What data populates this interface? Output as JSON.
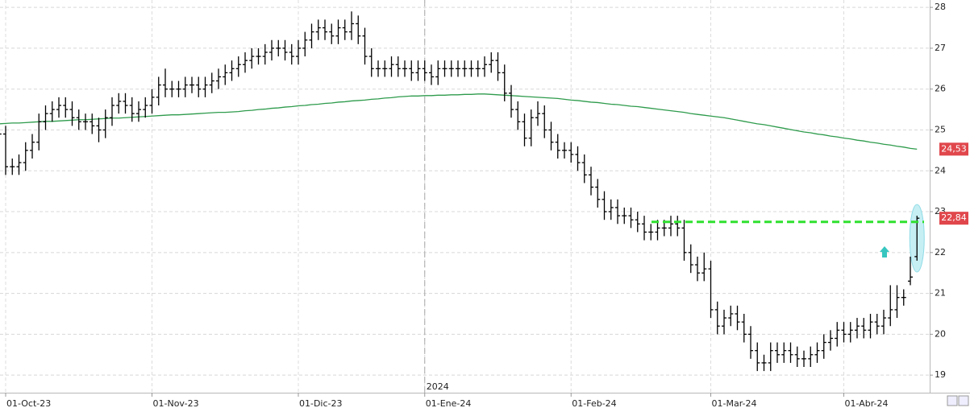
{
  "chart_data": {
    "type": "ohlc",
    "categories": [
      null,
      "01-Oct-23",
      null,
      null,
      null,
      null,
      null,
      null,
      null,
      null,
      null,
      null,
      null,
      null,
      null,
      null,
      null,
      null,
      null,
      null,
      null,
      null,
      null,
      "01-Nov-23",
      null,
      null,
      null,
      null,
      null,
      null,
      null,
      null,
      null,
      null,
      null,
      null,
      null,
      null,
      null,
      null,
      null,
      null,
      null,
      null,
      null,
      "01-Dic-23",
      null,
      null,
      null,
      null,
      null,
      null,
      null,
      null,
      null,
      null,
      null,
      null,
      null,
      null,
      null,
      null,
      null,
      null,
      "01-Ene-24",
      null,
      null,
      null,
      null,
      null,
      null,
      null,
      null,
      null,
      null,
      null,
      null,
      null,
      null,
      null,
      null,
      null,
      null,
      null,
      null,
      null,
      "01-Feb-24",
      null,
      null,
      null,
      null,
      null,
      null,
      null,
      null,
      null,
      null,
      null,
      null,
      null,
      null,
      null,
      null,
      null,
      null,
      null,
      null,
      "01-Mar-24",
      null,
      null,
      null,
      null,
      null,
      null,
      null,
      null,
      null,
      null,
      null,
      null,
      null,
      null,
      null,
      null,
      null,
      null,
      null,
      "01-Abr-24",
      null,
      null,
      null,
      null,
      null,
      null,
      null,
      null,
      null,
      null,
      null
    ],
    "open": [
      25.0,
      24.9,
      24.1,
      24.1,
      24.2,
      24.5,
      24.7,
      25.2,
      25.4,
      25.5,
      25.6,
      25.5,
      25.3,
      25.2,
      25.2,
      25.1,
      25.0,
      25.3,
      25.6,
      25.7,
      25.6,
      25.4,
      25.5,
      25.6,
      25.8,
      26.1,
      26.0,
      26.0,
      26.0,
      26.1,
      26.1,
      26.0,
      26.1,
      26.2,
      26.3,
      26.4,
      26.5,
      26.6,
      26.7,
      26.8,
      26.8,
      26.9,
      27.0,
      27.0,
      26.9,
      26.8,
      27.0,
      27.2,
      27.4,
      27.5,
      27.4,
      27.3,
      27.5,
      27.4,
      27.6,
      27.3,
      26.8,
      26.5,
      26.5,
      26.5,
      26.6,
      26.5,
      26.5,
      26.4,
      26.5,
      26.4,
      26.3,
      26.5,
      26.5,
      26.5,
      26.5,
      26.5,
      26.5,
      26.5,
      26.6,
      26.7,
      26.4,
      25.9,
      25.5,
      25.2,
      24.8,
      25.3,
      25.4,
      25.0,
      24.7,
      24.5,
      24.5,
      24.4,
      24.2,
      23.9,
      23.6,
      23.3,
      23.0,
      23.1,
      22.9,
      22.9,
      22.8,
      22.7,
      22.5,
      22.5,
      22.6,
      22.6,
      22.7,
      22.6,
      22.0,
      21.7,
      21.5,
      21.6,
      20.6,
      20.2,
      20.4,
      20.5,
      20.3,
      20.0,
      19.6,
      19.3,
      19.3,
      19.6,
      19.5,
      19.6,
      19.5,
      19.4,
      19.4,
      19.5,
      19.6,
      19.8,
      19.9,
      20.1,
      20.0,
      20.1,
      20.2,
      20.1,
      20.3,
      20.2,
      20.4,
      20.6,
      20.9,
      21.3,
      21.9
    ],
    "high": [
      25.2,
      25.1,
      24.3,
      24.4,
      24.7,
      24.9,
      25.4,
      25.6,
      25.7,
      25.8,
      25.8,
      25.7,
      25.5,
      25.4,
      25.4,
      25.3,
      25.5,
      25.8,
      25.9,
      25.9,
      25.8,
      25.7,
      25.8,
      26.0,
      26.3,
      26.5,
      26.2,
      26.2,
      26.3,
      26.3,
      26.3,
      26.3,
      26.4,
      26.5,
      26.6,
      26.7,
      26.8,
      26.9,
      27.0,
      27.0,
      27.1,
      27.2,
      27.2,
      27.2,
      27.1,
      27.2,
      27.4,
      27.6,
      27.7,
      27.7,
      27.6,
      27.7,
      27.7,
      27.9,
      27.8,
      27.5,
      27.0,
      26.7,
      26.7,
      26.8,
      26.8,
      26.7,
      26.7,
      26.7,
      26.7,
      26.6,
      26.7,
      26.7,
      26.7,
      26.7,
      26.7,
      26.7,
      26.7,
      26.8,
      26.9,
      26.9,
      26.6,
      26.1,
      25.7,
      25.4,
      25.5,
      25.7,
      25.6,
      25.2,
      24.9,
      24.7,
      24.7,
      24.6,
      24.4,
      24.1,
      23.8,
      23.5,
      23.3,
      23.3,
      23.1,
      23.1,
      23.0,
      22.9,
      22.7,
      22.8,
      22.8,
      22.9,
      22.9,
      22.8,
      22.2,
      21.9,
      22.0,
      21.8,
      20.8,
      20.6,
      20.7,
      20.7,
      20.5,
      20.2,
      19.8,
      19.5,
      19.8,
      19.8,
      19.8,
      19.8,
      19.7,
      19.6,
      19.7,
      19.8,
      20.0,
      20.1,
      20.3,
      20.3,
      20.3,
      20.4,
      20.4,
      20.5,
      20.5,
      20.6,
      21.2,
      21.2,
      21.1,
      21.9,
      22.9
    ],
    "low": [
      24.7,
      23.9,
      23.9,
      23.9,
      24.0,
      24.3,
      24.5,
      25.0,
      25.2,
      25.3,
      25.3,
      25.1,
      25.0,
      25.0,
      24.9,
      24.7,
      24.8,
      25.1,
      25.4,
      25.4,
      25.2,
      25.2,
      25.3,
      25.4,
      25.6,
      25.8,
      25.8,
      25.8,
      25.8,
      25.9,
      25.8,
      25.8,
      25.9,
      26.0,
      26.1,
      26.2,
      26.3,
      26.4,
      26.5,
      26.6,
      26.6,
      26.7,
      26.8,
      26.7,
      26.6,
      26.6,
      26.8,
      27.0,
      27.2,
      27.2,
      27.1,
      27.1,
      27.2,
      27.2,
      27.1,
      26.6,
      26.3,
      26.3,
      26.3,
      26.3,
      26.3,
      26.3,
      26.2,
      26.2,
      26.2,
      26.1,
      26.1,
      26.3,
      26.3,
      26.3,
      26.3,
      26.3,
      26.3,
      26.3,
      26.4,
      26.2,
      25.7,
      25.3,
      25.0,
      24.6,
      24.6,
      25.1,
      24.8,
      24.5,
      24.3,
      24.3,
      24.2,
      24.0,
      23.7,
      23.4,
      23.1,
      22.8,
      22.8,
      22.7,
      22.7,
      22.6,
      22.5,
      22.3,
      22.3,
      22.3,
      22.4,
      22.4,
      22.4,
      21.8,
      21.5,
      21.3,
      21.3,
      20.4,
      20.0,
      20.0,
      20.2,
      20.1,
      19.8,
      19.4,
      19.1,
      19.1,
      19.1,
      19.3,
      19.3,
      19.3,
      19.2,
      19.2,
      19.2,
      19.3,
      19.4,
      19.6,
      19.7,
      19.8,
      19.8,
      19.9,
      19.9,
      19.9,
      20.0,
      20.0,
      20.2,
      20.4,
      20.7,
      21.2,
      21.8
    ],
    "close": [
      24.9,
      24.1,
      24.1,
      24.2,
      24.5,
      24.7,
      25.2,
      25.4,
      25.5,
      25.6,
      25.5,
      25.3,
      25.2,
      25.2,
      25.1,
      25.0,
      25.3,
      25.6,
      25.7,
      25.6,
      25.4,
      25.5,
      25.6,
      25.8,
      26.1,
      26.0,
      26.0,
      26.0,
      26.1,
      26.1,
      26.0,
      26.1,
      26.2,
      26.3,
      26.4,
      26.5,
      26.6,
      26.7,
      26.8,
      26.8,
      26.9,
      27.0,
      27.0,
      26.9,
      26.8,
      27.0,
      27.2,
      27.4,
      27.5,
      27.4,
      27.3,
      27.5,
      27.4,
      27.6,
      27.3,
      26.8,
      26.5,
      26.5,
      26.5,
      26.6,
      26.5,
      26.5,
      26.4,
      26.5,
      26.4,
      26.3,
      26.5,
      26.5,
      26.5,
      26.5,
      26.5,
      26.5,
      26.5,
      26.6,
      26.7,
      26.4,
      25.9,
      25.5,
      25.2,
      24.8,
      25.3,
      25.4,
      25.0,
      24.7,
      24.5,
      24.5,
      24.4,
      24.2,
      23.9,
      23.6,
      23.3,
      23.0,
      23.1,
      22.9,
      22.9,
      22.8,
      22.7,
      22.5,
      22.5,
      22.6,
      22.6,
      22.7,
      22.6,
      22.0,
      21.7,
      21.5,
      21.6,
      20.6,
      20.2,
      20.4,
      20.5,
      20.3,
      20.0,
      19.6,
      19.3,
      19.3,
      19.6,
      19.5,
      19.6,
      19.5,
      19.4,
      19.4,
      19.5,
      19.6,
      19.8,
      19.9,
      20.1,
      20.0,
      20.1,
      20.2,
      20.1,
      20.3,
      20.2,
      20.4,
      20.6,
      20.9,
      20.9,
      21.4,
      22.84
    ],
    "color": "#000000",
    "series": [
      {
        "color": "#2e9b4c",
        "values": [
          25.15,
          25.16,
          25.17,
          25.17,
          25.18,
          25.19,
          25.2,
          25.21,
          25.21,
          25.22,
          25.23,
          25.24,
          25.25,
          25.25,
          25.26,
          25.27,
          25.28,
          25.29,
          25.29,
          25.3,
          25.31,
          25.32,
          25.33,
          25.34,
          25.35,
          25.36,
          25.37,
          25.37,
          25.38,
          25.39,
          25.4,
          25.41,
          25.42,
          25.43,
          25.43,
          25.44,
          25.45,
          25.47,
          25.48,
          25.5,
          25.51,
          25.53,
          25.54,
          25.56,
          25.57,
          25.59,
          25.6,
          25.62,
          25.63,
          25.65,
          25.66,
          25.68,
          25.69,
          25.71,
          25.72,
          25.73,
          25.75,
          25.76,
          25.78,
          25.79,
          25.81,
          25.82,
          25.83,
          25.83,
          25.84,
          25.84,
          25.85,
          25.85,
          25.86,
          25.86,
          25.87,
          25.87,
          25.88,
          25.88,
          25.87,
          25.86,
          25.85,
          25.84,
          25.83,
          25.82,
          25.81,
          25.8,
          25.79,
          25.78,
          25.77,
          25.75,
          25.73,
          25.72,
          25.7,
          25.68,
          25.67,
          25.65,
          25.63,
          25.62,
          25.6,
          25.58,
          25.57,
          25.55,
          25.53,
          25.51,
          25.49,
          25.47,
          25.45,
          25.43,
          25.4,
          25.38,
          25.36,
          25.34,
          25.32,
          25.3,
          25.27,
          25.24,
          25.21,
          25.18,
          25.15,
          25.13,
          25.1,
          25.07,
          25.04,
          25.01,
          24.98,
          24.95,
          24.93,
          24.9,
          24.88,
          24.85,
          24.83,
          24.8,
          24.78,
          24.75,
          24.73,
          24.7,
          24.68,
          24.65,
          24.63,
          24.6,
          24.58,
          24.55,
          24.53
        ]
      }
    ],
    "hline": {
      "value": 22.75,
      "color": "#2fe02f"
    },
    "price_labels": [
      {
        "value": 24.53,
        "label": "24,53"
      },
      {
        "value": 22.84,
        "label": "22,84"
      }
    ],
    "price_label_color": "#e0474c",
    "year_label": "2024",
    "ylim": [
      18.57,
      28.18
    ],
    "yticks": [
      19,
      20,
      21,
      22,
      23,
      24,
      25,
      26,
      27,
      28
    ],
    "grid": true
  }
}
